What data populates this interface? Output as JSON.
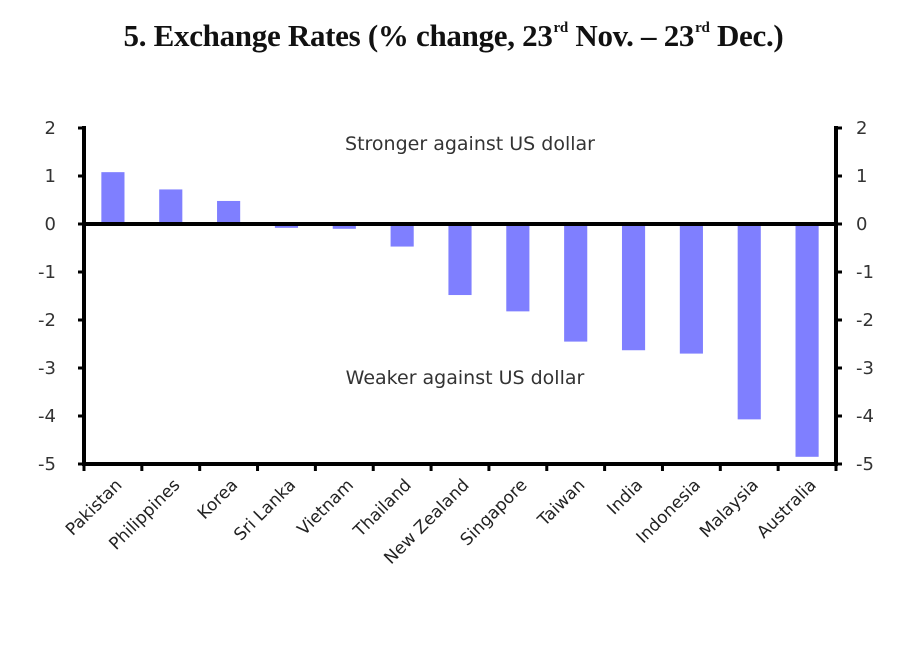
{
  "chart_data": {
    "type": "bar",
    "title_parts": {
      "prefix": "5. Exchange Rates (% change, 23",
      "sup1": "rd",
      "middle": " Nov. – 23",
      "sup2": "rd",
      "suffix": " Dec.)"
    },
    "title": "5. Exchange Rates (% change, 23rd Nov. – 23rd Dec.)",
    "xlabel": "",
    "ylabel": "",
    "ylim": [
      -5,
      2
    ],
    "yticks": [
      2,
      1,
      0,
      -1,
      -2,
      -3,
      -4,
      -5
    ],
    "secondary_yticks": [
      2,
      1,
      0,
      -1,
      -2,
      -3,
      -4,
      -5
    ],
    "grid": false,
    "bar_color": "#7f7fff",
    "categories": [
      "Pakistan",
      "Philippines",
      "Korea",
      "Sri Lanka",
      "Vietnam",
      "Thailand",
      "New Zealand",
      "Singapore",
      "Taiwan",
      "India",
      "Indonesia",
      "Malaysia",
      "Australia"
    ],
    "values": [
      1.08,
      0.72,
      0.48,
      -0.08,
      -0.1,
      -0.47,
      -1.48,
      -1.82,
      -2.45,
      -2.63,
      -2.7,
      -4.07,
      -4.85
    ],
    "annotations": [
      {
        "text": "Stronger against US dollar",
        "position": "top-center"
      },
      {
        "text": "Weaker against US dollar",
        "position": "lower-center"
      }
    ]
  }
}
